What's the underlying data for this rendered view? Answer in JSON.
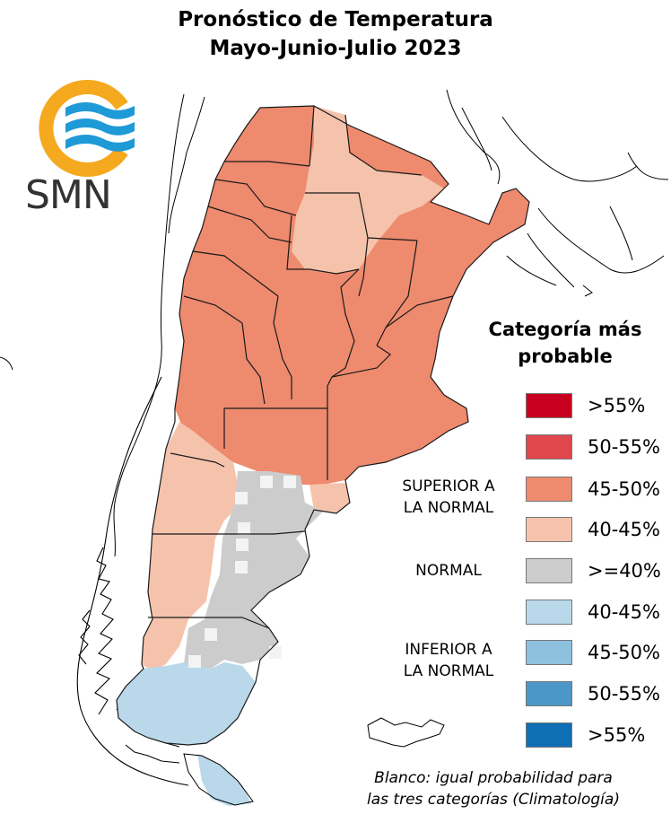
{
  "header": {
    "title_line1": "Pronóstico de Temperatura",
    "title_line2": "Mayo-Junio-Julio 2023"
  },
  "logo": {
    "text": "SMN",
    "ring_color": "#f5a91e",
    "wave_color": "#1e9ad6"
  },
  "legend": {
    "title_line1": "Categoría más",
    "title_line2": "probable",
    "items": [
      {
        "label": ">55%",
        "color": "#c8001f"
      },
      {
        "label": "50-55%",
        "color": "#e0474c"
      },
      {
        "label": "45-50%",
        "color": "#ee8a6e"
      },
      {
        "label": "40-45%",
        "color": "#f5c3ab"
      },
      {
        "label": ">=40%",
        "color": "#cccccc"
      },
      {
        "label": "40-45%",
        "color": "#b9d8ea"
      },
      {
        "label": "45-50%",
        "color": "#8ec1de"
      },
      {
        "label": "50-55%",
        "color": "#4a97c8"
      },
      {
        "label": ">55%",
        "color": "#0f6fb5"
      }
    ],
    "group_superior_line1": "SUPERIOR A",
    "group_superior_line2": "LA NORMAL",
    "group_normal": "NORMAL",
    "group_inferior_line1": "INFERIOR A",
    "group_inferior_line2": "LA NORMAL"
  },
  "note": {
    "line1": "Blanco: igual probabilidad para",
    "line2": "las tres categorías (Climatología)"
  }
}
